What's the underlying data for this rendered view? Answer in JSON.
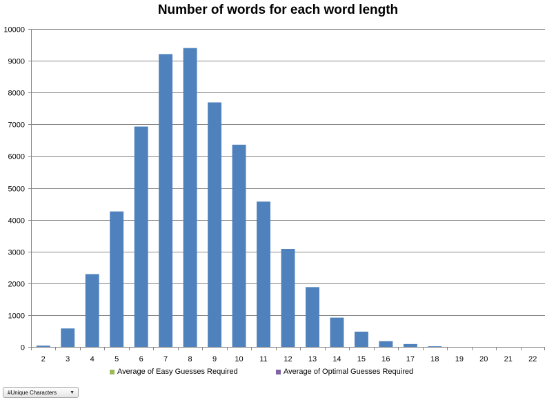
{
  "chart_data": {
    "type": "bar",
    "title": "Number of words for each word length",
    "xlabel": "",
    "ylabel": "",
    "categories": [
      "2",
      "3",
      "4",
      "5",
      "6",
      "7",
      "8",
      "9",
      "10",
      "11",
      "12",
      "13",
      "14",
      "15",
      "16",
      "17",
      "18",
      "19",
      "20",
      "21",
      "22"
    ],
    "series": [
      {
        "values": [
          40,
          580,
          2290,
          4260,
          6930,
          9210,
          9400,
          7690,
          6360,
          4570,
          3080,
          1880,
          920,
          480,
          180,
          90,
          20,
          0,
          0,
          0,
          0
        ]
      }
    ],
    "ylim": [
      0,
      10000
    ],
    "yticks": [
      0,
      1000,
      2000,
      3000,
      4000,
      5000,
      6000,
      7000,
      8000,
      9000,
      10000
    ],
    "grid": true,
    "legend_position": "bottom"
  },
  "legend": {
    "items": [
      {
        "label": "Average of Easy Guesses Required",
        "color": "#9bbb59"
      },
      {
        "label": "Average of Optimal Guesses Required",
        "color": "#8064a2"
      }
    ]
  },
  "field_button": {
    "label": "#Unique Characters",
    "icon": "dropdown-caret"
  },
  "colors": {
    "bar": "#4f81bd",
    "grid": "#868686",
    "axis": "#868686"
  }
}
